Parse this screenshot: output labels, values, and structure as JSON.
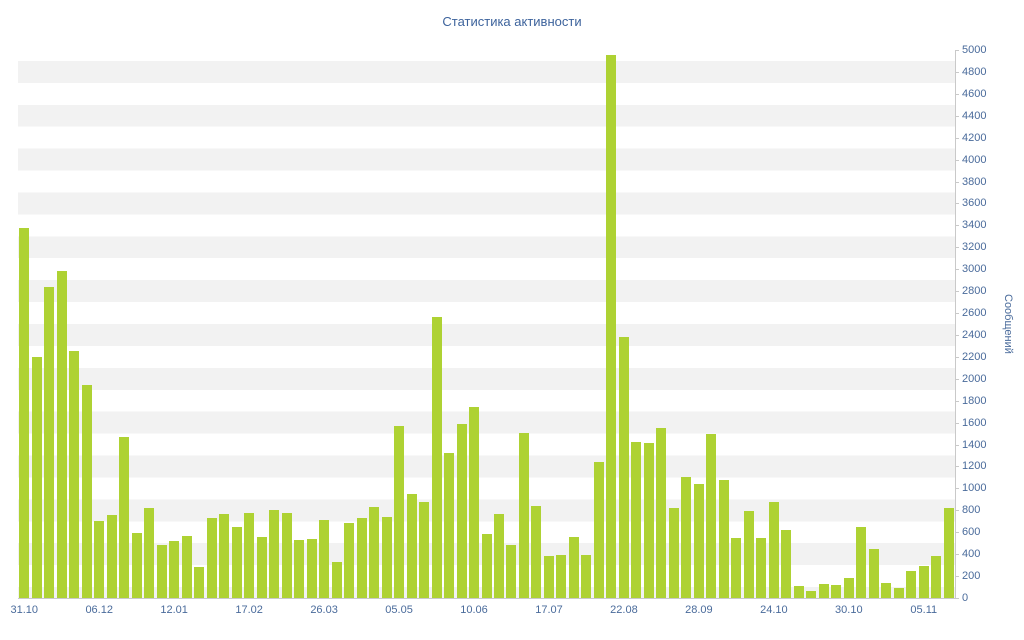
{
  "chart_data": {
    "type": "bar",
    "title": "Статистика активности",
    "ylabel": "Сообщений",
    "xlabel": "",
    "ylim": [
      0,
      5000
    ],
    "y_tick_step": 200,
    "y_tick_labels": [
      "0",
      "200",
      "400",
      "600",
      "800",
      "1000",
      "1200",
      "1400",
      "1600",
      "1800",
      "2000",
      "2200",
      "2400",
      "2600",
      "2800",
      "3000",
      "3200",
      "3400",
      "3600",
      "3800",
      "4000",
      "4200",
      "4400",
      "4600",
      "4800",
      "5000"
    ],
    "x_tick_labels": [
      "31.10",
      "06.12",
      "12.01",
      "17.02",
      "26.03",
      "05.05",
      "10.06",
      "17.07",
      "22.08",
      "28.09",
      "24.10",
      "30.10",
      "05.11"
    ],
    "bars_per_tick": 6,
    "grid": "horizontal-striped-bands",
    "legend": "none",
    "values": [
      3380,
      2200,
      2840,
      2980,
      2250,
      1940,
      700,
      760,
      1470,
      590,
      820,
      480,
      520,
      570,
      280,
      730,
      770,
      650,
      780,
      560,
      800,
      780,
      530,
      540,
      710,
      330,
      680,
      730,
      830,
      740,
      1570,
      950,
      880,
      2560,
      1320,
      1590,
      1740,
      580,
      770,
      480,
      1510,
      840,
      380,
      390,
      560,
      390,
      1240,
      4950,
      2380,
      1420,
      1410,
      1550,
      820,
      1100,
      1040,
      1500,
      1080,
      550,
      790,
      550,
      880,
      620,
      110,
      60,
      130,
      120,
      180,
      650,
      450,
      140,
      90,
      250,
      290,
      380,
      820
    ],
    "colors": {
      "bar": "#aed233",
      "title": "#3d639c",
      "axis_labels": "#4a6b9b",
      "axis_line": "#c9c9c9",
      "stripe": "#f2f2f2",
      "background": "#ffffff"
    }
  }
}
